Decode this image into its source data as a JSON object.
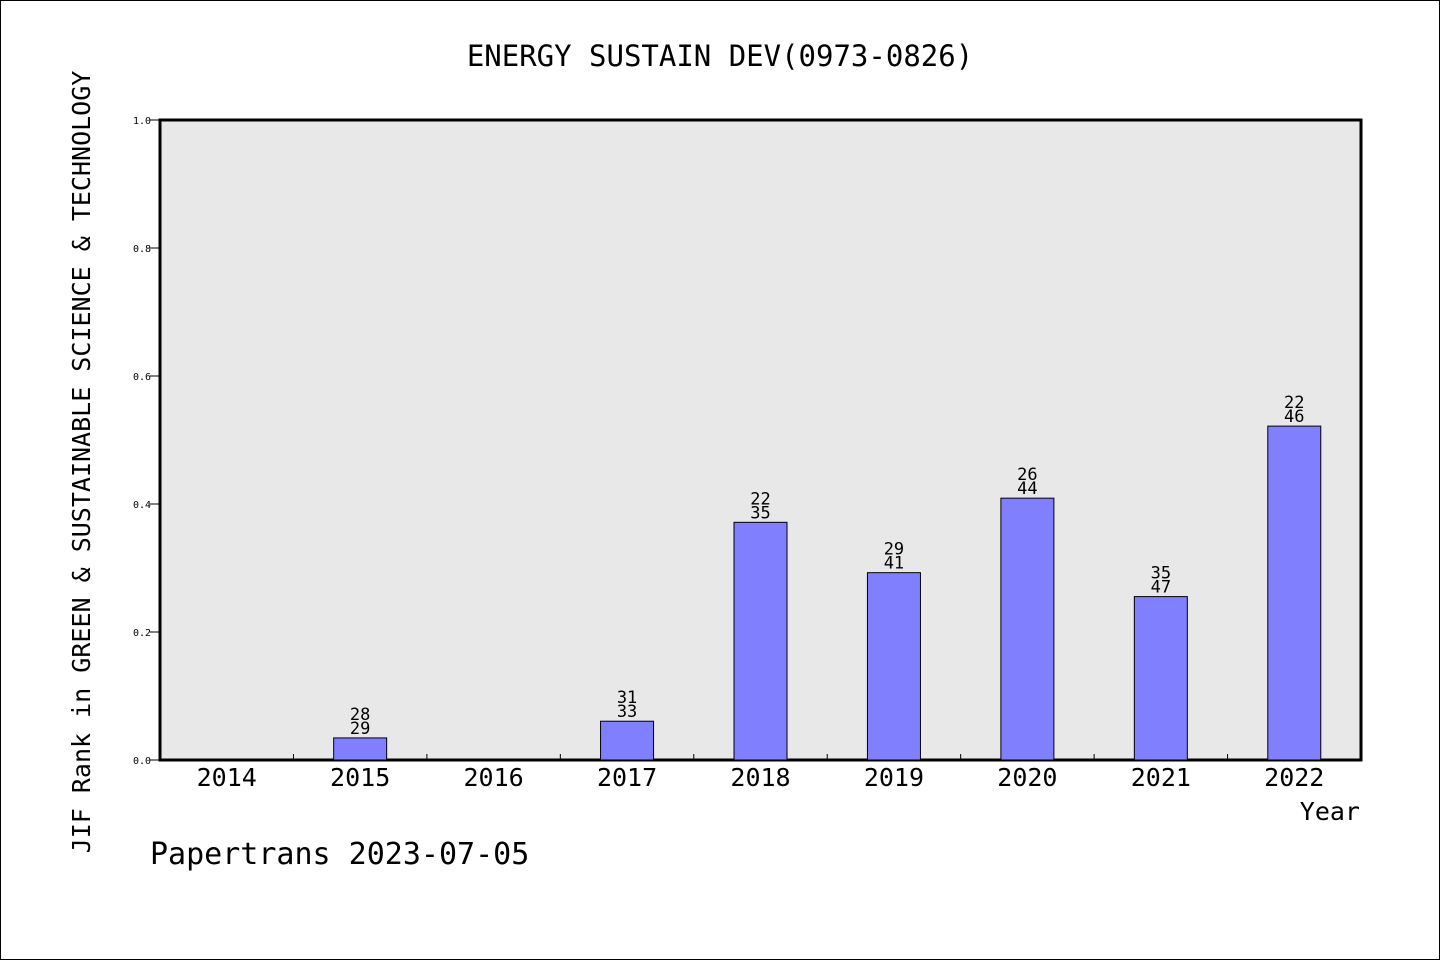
{
  "chart_data": {
    "type": "bar",
    "title": "ENERGY SUSTAIN DEV(0973-0826)",
    "xlabel": "Year",
    "ylabel": "JIF Rank in GREEN & SUSTAINABLE SCIENCE & TECHNOLOGY",
    "footer": "Papertrans 2023-07-05",
    "categories": [
      "2014",
      "2015",
      "2016",
      "2017",
      "2018",
      "2019",
      "2020",
      "2021",
      "2022"
    ],
    "values": [
      null,
      0.0345,
      null,
      0.0606,
      0.3714,
      0.2927,
      0.4091,
      0.2553,
      0.5217
    ],
    "rank_labels": [
      null,
      {
        "rank": "28",
        "total": "29"
      },
      null,
      {
        "rank": "31",
        "total": "33"
      },
      {
        "rank": "22",
        "total": "35"
      },
      {
        "rank": "29",
        "total": "41"
      },
      {
        "rank": "26",
        "total": "44"
      },
      {
        "rank": "35",
        "total": "47"
      },
      {
        "rank": "22",
        "total": "46"
      }
    ],
    "ylim": [
      0,
      1.0
    ],
    "yticks": [
      "0.0",
      "0.2",
      "0.4",
      "0.6",
      "0.8",
      "1.0"
    ],
    "grid": false,
    "colors": {
      "bar": "#8080ff",
      "plot_bg": "#e8e8e8",
      "axis": "#000000"
    }
  }
}
